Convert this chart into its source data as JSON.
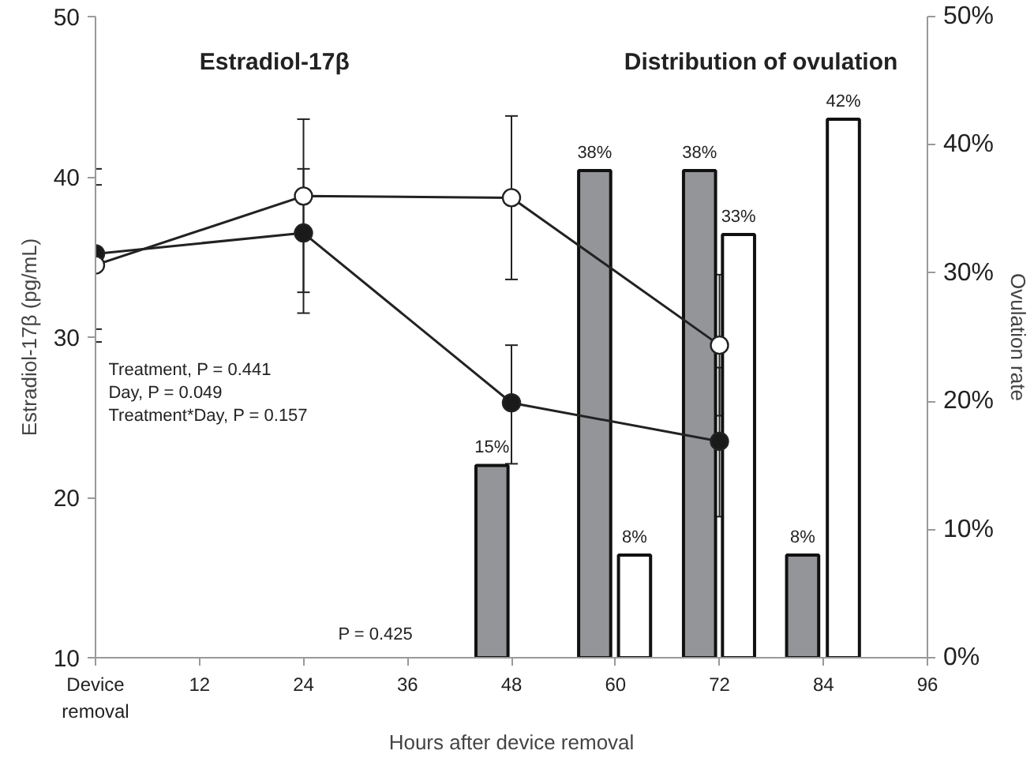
{
  "chart_data": {
    "type": "line",
    "xlabel": "Hours after device removal",
    "ylabel": "Estradiol-17β (pg/mL)",
    "y2label": "Ovulation rate",
    "annotations": [
      "Estradiol-17β",
      "Distribution of ovulation",
      "Treatment, P = 0.441\nDay, P = 0.049\nTreatment*Day, P = 0.157",
      "P = 0.425"
    ],
    "xlim": [
      0,
      96
    ],
    "xticks": [
      {
        "value": 0,
        "label": "Device\nremoval"
      },
      12,
      24,
      36,
      48,
      60,
      72,
      84,
      96
    ],
    "ylim": [
      10,
      50
    ],
    "yticks": [
      10,
      20,
      30,
      40,
      50
    ],
    "y2lim": [
      0,
      50
    ],
    "y2ticks": [
      {
        "value": 0,
        "label": "0%"
      },
      {
        "value": 10,
        "label": "10%"
      },
      {
        "value": 20,
        "label": "20%"
      },
      {
        "value": 30,
        "label": "30%"
      },
      {
        "value": 40,
        "label": "40%"
      },
      {
        "value": 50,
        "label": "50%"
      }
    ],
    "grid": false,
    "marker": "circle",
    "line_style": "solid",
    "series": [
      {
        "type": "bar",
        "axis": "y2",
        "color": "#939598",
        "x": [
          45.75,
          57.6,
          69.7,
          81.6
        ],
        "values": [
          15,
          38,
          38,
          8
        ],
        "value_labels": [
          "15%",
          "38%",
          "38%",
          "8%"
        ]
      },
      {
        "type": "bar",
        "axis": "y2",
        "color": "#ffffff",
        "x": [
          62.2,
          74.2,
          86.3
        ],
        "values": [
          8,
          33,
          42
        ],
        "value_labels": [
          "8%",
          "33%",
          "42%"
        ]
      },
      {
        "color": "#1a1a1a",
        "x": [
          0,
          24,
          48,
          72
        ],
        "values": [
          35.2,
          36.5,
          25.9,
          23.5
        ],
        "errors": [
          [
            30.5,
            40.5
          ],
          [
            32.8,
            40.5
          ],
          [
            22.1,
            29.5
          ],
          [
            18.8,
            28.1
          ]
        ]
      },
      {
        "color": "#ffffff",
        "x": [
          0,
          24,
          48,
          72
        ],
        "values": [
          34.5,
          38.8,
          38.7,
          29.5
        ],
        "errors": [
          [
            29.7,
            39.5
          ],
          [
            31.5,
            43.6
          ],
          [
            33.6,
            43.8
          ],
          [
            25.1,
            33.9
          ]
        ]
      }
    ]
  }
}
